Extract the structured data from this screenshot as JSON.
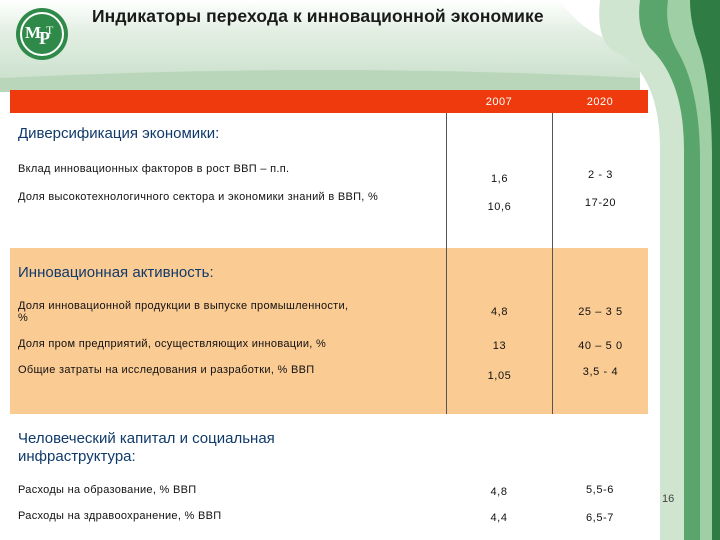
{
  "title": "Индикаторы перехода к инновационной экономике",
  "logo_text": "МЭРТ",
  "colors": {
    "header": "#ee3a0c",
    "peach_section": "#fbcb94",
    "green_dark": "#3a8a4e",
    "green_light": "#c9e2cb",
    "section_title": "#103a6a"
  },
  "table": {
    "headers": [
      "",
      "2007",
      "2020"
    ],
    "sections": [
      {
        "title": "Диверсификация экономики:",
        "rows": [
          {
            "label": "Вклад инновационных факторов в рост ВВП – п.п.",
            "v2007": "1,6",
            "v2020": "2 - 3"
          },
          {
            "label": "Доля высокотехнологичного сектора и экономики знаний в ВВП, %",
            "v2007": "10,6",
            "v2020": "17-20"
          }
        ]
      },
      {
        "title": "Инновационная активность:",
        "rows": [
          {
            "label": "Доля инновационной продукции в выпуске промышленности, %",
            "v2007": "4,8",
            "v2020": "25 – 3 5"
          },
          {
            "label": "Доля пром предприятий, осуществляющих инновации, %",
            "v2007": "13",
            "v2020": "40 – 5 0"
          },
          {
            "label": "Общие затраты на исследования и разработки, % ВВП",
            "v2007": "1,05",
            "v2020": "3,5 - 4"
          }
        ]
      },
      {
        "title": "Человеческий капитал и социальная инфраструктура:",
        "rows": [
          {
            "label": "Расходы на образование, % ВВП",
            "v2007": "4,8",
            "v2020": "5,5-6"
          },
          {
            "label": "Расходы на здравоохранение, % ВВП",
            "v2007": "4,4",
            "v2020": "6,5-7"
          }
        ]
      }
    ]
  },
  "page_number": "16"
}
